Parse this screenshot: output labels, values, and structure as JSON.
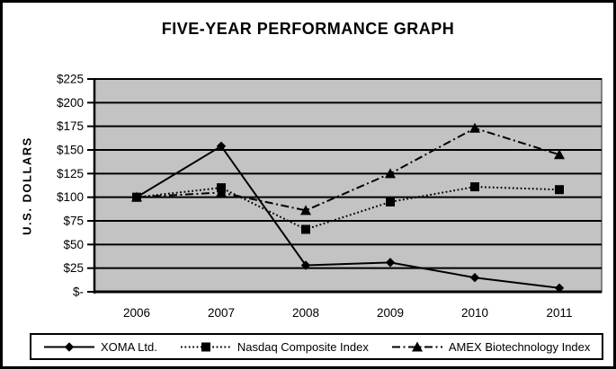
{
  "chart_data": {
    "type": "line",
    "title": "FIVE-YEAR PERFORMANCE GRAPH",
    "xlabel": "",
    "ylabel": "U.S. DOLLARS",
    "categories": [
      "2006",
      "2007",
      "2008",
      "2009",
      "2010",
      "2011"
    ],
    "series": [
      {
        "name": "XOMA Ltd.",
        "marker": "diamond",
        "line_style": "solid",
        "values": [
          100,
          154,
          28,
          31,
          15,
          4
        ]
      },
      {
        "name": "Nasdaq Composite Index",
        "marker": "square",
        "line_style": "dotted",
        "values": [
          100,
          110,
          66,
          95,
          111,
          108
        ]
      },
      {
        "name": "AMEX Biotechnology Index",
        "marker": "triangle",
        "line_style": "dash-dot",
        "values": [
          100,
          105,
          86,
          125,
          173,
          145
        ]
      }
    ],
    "ylim": [
      0,
      225
    ],
    "ytick_step": 25,
    "ytick_labels": [
      "$-",
      "$25",
      "$50",
      "$75",
      "$100",
      "$125",
      "$150",
      "$175",
      "$200",
      "$225"
    ],
    "grid": "horizontal",
    "legend_position": "bottom",
    "colors": {
      "series": "#000000",
      "plot_background": "#c3c3c3",
      "gridline": "#000000",
      "plot_border": "#808080",
      "axis": "#000000",
      "frame_border": "#000000"
    }
  }
}
